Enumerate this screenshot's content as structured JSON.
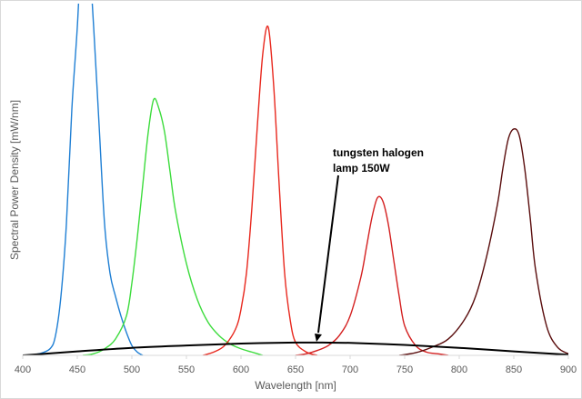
{
  "chart_data": {
    "type": "line",
    "xlabel": "Wavelength [nm]",
    "ylabel": "Spectral Power Density [mW/nm]",
    "xlim": [
      400,
      900
    ],
    "ylim": [
      0,
      100
    ],
    "x_ticks": [
      "400",
      "450",
      "500",
      "550",
      "600",
      "650",
      "700",
      "750",
      "800",
      "850",
      "900"
    ],
    "grid": false,
    "annotation": {
      "lines": [
        "tungsten halogen",
        "lamp 150W"
      ],
      "points_to": {
        "x": 670,
        "y": 3.5
      }
    },
    "series": [
      {
        "color": "#1f7fd4",
        "x": [
          405,
          415,
          425,
          430,
          435,
          440,
          445,
          450,
          455,
          460,
          465,
          470,
          475,
          480,
          485,
          490,
          495,
          500,
          505,
          510
        ],
        "y": [
          0,
          0.5,
          2,
          6,
          18,
          40,
          75,
          100,
          130,
          125,
          100,
          70,
          40,
          25,
          18,
          12,
          7,
          3,
          1,
          0
        ]
      },
      {
        "color": "#3ddc3d",
        "x": [
          455,
          465,
          475,
          485,
          495,
          500,
          505,
          510,
          515,
          520,
          525,
          530,
          535,
          540,
          550,
          560,
          570,
          580,
          590,
          600,
          610,
          620
        ],
        "y": [
          0,
          0.5,
          2,
          5,
          12,
          22,
          36,
          52,
          68,
          78,
          75,
          68,
          56,
          44,
          28,
          17,
          10,
          6,
          3.5,
          2,
          1,
          0
        ]
      },
      {
        "color": "#e8281e",
        "x": [
          565,
          575,
          585,
          595,
          600,
          605,
          610,
          615,
          620,
          625,
          630,
          635,
          640,
          645,
          650,
          660,
          670
        ],
        "y": [
          0,
          1,
          3,
          8,
          14,
          25,
          45,
          70,
          92,
          100,
          82,
          52,
          25,
          11,
          4,
          1,
          0
        ]
      },
      {
        "color": "#d42020",
        "x": [
          650,
          660,
          670,
          680,
          690,
          700,
          710,
          715,
          720,
          725,
          730,
          735,
          740,
          745,
          750,
          760,
          770,
          780,
          790
        ],
        "y": [
          0,
          0.5,
          1.5,
          3,
          6,
          12,
          24,
          33,
          42,
          48,
          47,
          40,
          29,
          18,
          9,
          3,
          1,
          0.5,
          0
        ]
      },
      {
        "color": "#5a0d0d",
        "x": [
          745,
          760,
          775,
          790,
          805,
          815,
          825,
          835,
          840,
          845,
          850,
          855,
          860,
          865,
          870,
          880,
          890,
          900
        ],
        "y": [
          0,
          0.8,
          2.5,
          5,
          11,
          18,
          30,
          46,
          57,
          66,
          69,
          67,
          57,
          42,
          26,
          9,
          2.5,
          0.5
        ]
      },
      {
        "color": "#000000",
        "x": [
          400,
          450,
          500,
          550,
          600,
          650,
          675,
          700,
          750,
          800,
          850,
          900
        ],
        "y": [
          0,
          1.2,
          2.3,
          3.0,
          3.6,
          3.9,
          3.9,
          3.8,
          3.2,
          2.3,
          1.2,
          0.2
        ]
      }
    ]
  }
}
